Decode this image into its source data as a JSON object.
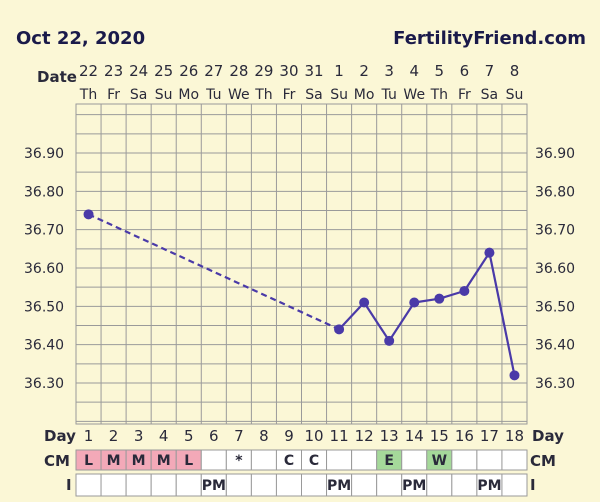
{
  "header": {
    "date_text": "Oct 22, 2020",
    "brand": "FertilityFriend.com"
  },
  "labels": {
    "date": "Date",
    "day": "Day",
    "cm": "CM",
    "i": "I"
  },
  "colors": {
    "background": "#fbf7d6",
    "grid": "#9a9a9a",
    "line": "#4a3aa8",
    "menstrual_cell": "#f3a9b8",
    "fertile_cell": "#a5d99a",
    "row_cell": "#ffffff"
  },
  "chart_data": {
    "type": "line",
    "dates": [
      "22",
      "23",
      "24",
      "25",
      "26",
      "27",
      "28",
      "29",
      "30",
      "31",
      "1",
      "2",
      "3",
      "4",
      "5",
      "6",
      "7",
      "8"
    ],
    "weekdays": [
      "Th",
      "Fr",
      "Sa",
      "Su",
      "Mo",
      "Tu",
      "We",
      "Th",
      "Fr",
      "Sa",
      "Su",
      "Mo",
      "Tu",
      "We",
      "Th",
      "Fr",
      "Sa",
      "Su"
    ],
    "cycle_days": [
      "1",
      "2",
      "3",
      "4",
      "5",
      "6",
      "7",
      "8",
      "9",
      "10",
      "11",
      "12",
      "13",
      "14",
      "15",
      "16",
      "17",
      "18"
    ],
    "y_ticks": [
      "36.90",
      "36.80",
      "36.70",
      "36.60",
      "36.50",
      "36.40",
      "36.30"
    ],
    "ylim": [
      36.3,
      36.9
    ],
    "temperatures": [
      36.74,
      null,
      null,
      null,
      null,
      null,
      null,
      null,
      null,
      null,
      36.44,
      36.51,
      36.41,
      36.51,
      36.52,
      36.54,
      36.64,
      36.32
    ],
    "cm": [
      "L",
      "M",
      "M",
      "M",
      "L",
      "",
      "*",
      "",
      "C",
      "C",
      "",
      "",
      "E",
      "",
      "W",
      "",
      "",
      ""
    ],
    "intercourse": [
      "",
      "",
      "",
      "",
      "",
      "PM",
      "",
      "",
      "",
      "",
      "PM",
      "",
      "",
      "PM",
      "",
      "",
      "PM",
      ""
    ]
  }
}
